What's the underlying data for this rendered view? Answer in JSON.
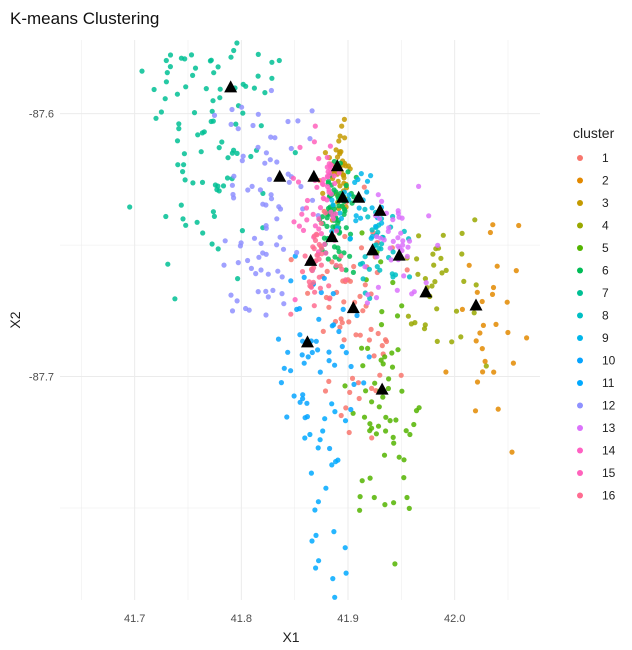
{
  "chart_data": {
    "type": "scatter",
    "title": "K-means Clustering",
    "xlabel": "X1",
    "ylabel": "X2",
    "xlim": [
      41.63,
      42.08
    ],
    "ylim": [
      -87.785,
      -87.572
    ],
    "x_ticks": [
      41.7,
      41.8,
      41.9,
      42.0
    ],
    "x_tick_labels": [
      "41.7",
      "41.8",
      "41.9",
      "42.0"
    ],
    "y_ticks": [
      -87.6,
      -87.7
    ],
    "y_tick_labels": [
      "-87.6",
      "-87.7"
    ],
    "grid": true,
    "legend_title": "cluster",
    "legend_position": "right",
    "series": [
      {
        "name": "1",
        "color": "#F8766D",
        "center": [
          41.905,
          -87.676
        ],
        "spread": [
          0.022,
          0.022
        ],
        "n": 70,
        "points": []
      },
      {
        "name": "2",
        "color": "#E38900",
        "center": [
          42.03,
          -87.678
        ],
        "spread": [
          0.018,
          0.02
        ],
        "n": 28,
        "points": []
      },
      {
        "name": "3",
        "color": "#C49A00",
        "center": [
          41.892,
          -87.622
        ],
        "spread": [
          0.006,
          0.008
        ],
        "n": 45,
        "points": []
      },
      {
        "name": "4",
        "color": "#99A800",
        "center": [
          41.995,
          -87.67
        ],
        "spread": [
          0.022,
          0.012
        ],
        "n": 35,
        "points": []
      },
      {
        "name": "5",
        "color": "#53B400",
        "center": [
          41.935,
          -87.71
        ],
        "spread": [
          0.015,
          0.025
        ],
        "n": 60,
        "points": []
      },
      {
        "name": "6",
        "color": "#00BC56",
        "center": [
          41.888,
          -87.64
        ],
        "spread": [
          0.008,
          0.01
        ],
        "n": 75,
        "points": []
      },
      {
        "name": "7",
        "color": "#00C094",
        "center": [
          41.77,
          -87.6
        ],
        "spread": [
          0.032,
          0.03
        ],
        "n": 120,
        "points": []
      },
      {
        "name": "8",
        "color": "#00BFC4",
        "center": [
          41.93,
          -87.652
        ],
        "spread": [
          0.012,
          0.01
        ],
        "n": 35,
        "points": []
      },
      {
        "name": "9",
        "color": "#00B6EB",
        "center": [
          41.91,
          -87.634
        ],
        "spread": [
          0.01,
          0.008
        ],
        "n": 30,
        "points": []
      },
      {
        "name": "10",
        "color": "#06A4FF",
        "center": [
          41.875,
          -87.69
        ],
        "spread": [
          0.02,
          0.02
        ],
        "n": 50,
        "points": []
      },
      {
        "name": "11",
        "color": "#00A9FF",
        "center": [
          41.88,
          -87.745
        ],
        "spread": [
          0.012,
          0.025
        ],
        "n": 25,
        "points": []
      },
      {
        "name": "12",
        "color": "#8F91FF",
        "center": [
          41.825,
          -87.64
        ],
        "spread": [
          0.025,
          0.025
        ],
        "n": 80,
        "points": []
      },
      {
        "name": "13",
        "color": "#DB72FB",
        "center": [
          41.945,
          -87.648
        ],
        "spread": [
          0.015,
          0.012
        ],
        "n": 45,
        "points": []
      },
      {
        "name": "14",
        "color": "#FF61C3",
        "center": [
          41.88,
          -87.627
        ],
        "spread": [
          0.006,
          0.008
        ],
        "n": 30,
        "points": []
      },
      {
        "name": "15",
        "color": "#FF62BC",
        "center": [
          41.868,
          -87.64
        ],
        "spread": [
          0.01,
          0.012
        ],
        "n": 30,
        "points": []
      },
      {
        "name": "16",
        "color": "#FF6C91",
        "center": [
          41.873,
          -87.658
        ],
        "spread": [
          0.012,
          0.012
        ],
        "n": 35,
        "points": []
      }
    ],
    "centroids": [
      [
        41.79,
        -87.59
      ],
      [
        41.836,
        -87.624
      ],
      [
        41.868,
        -87.624
      ],
      [
        41.89,
        -87.62
      ],
      [
        41.895,
        -87.632
      ],
      [
        41.91,
        -87.632
      ],
      [
        41.93,
        -87.637
      ],
      [
        41.885,
        -87.647
      ],
      [
        41.923,
        -87.652
      ],
      [
        41.948,
        -87.654
      ],
      [
        41.865,
        -87.656
      ],
      [
        41.973,
        -87.668
      ],
      [
        42.02,
        -87.673
      ],
      [
        41.905,
        -87.674
      ],
      [
        41.862,
        -87.687
      ],
      [
        41.932,
        -87.705
      ]
    ]
  }
}
